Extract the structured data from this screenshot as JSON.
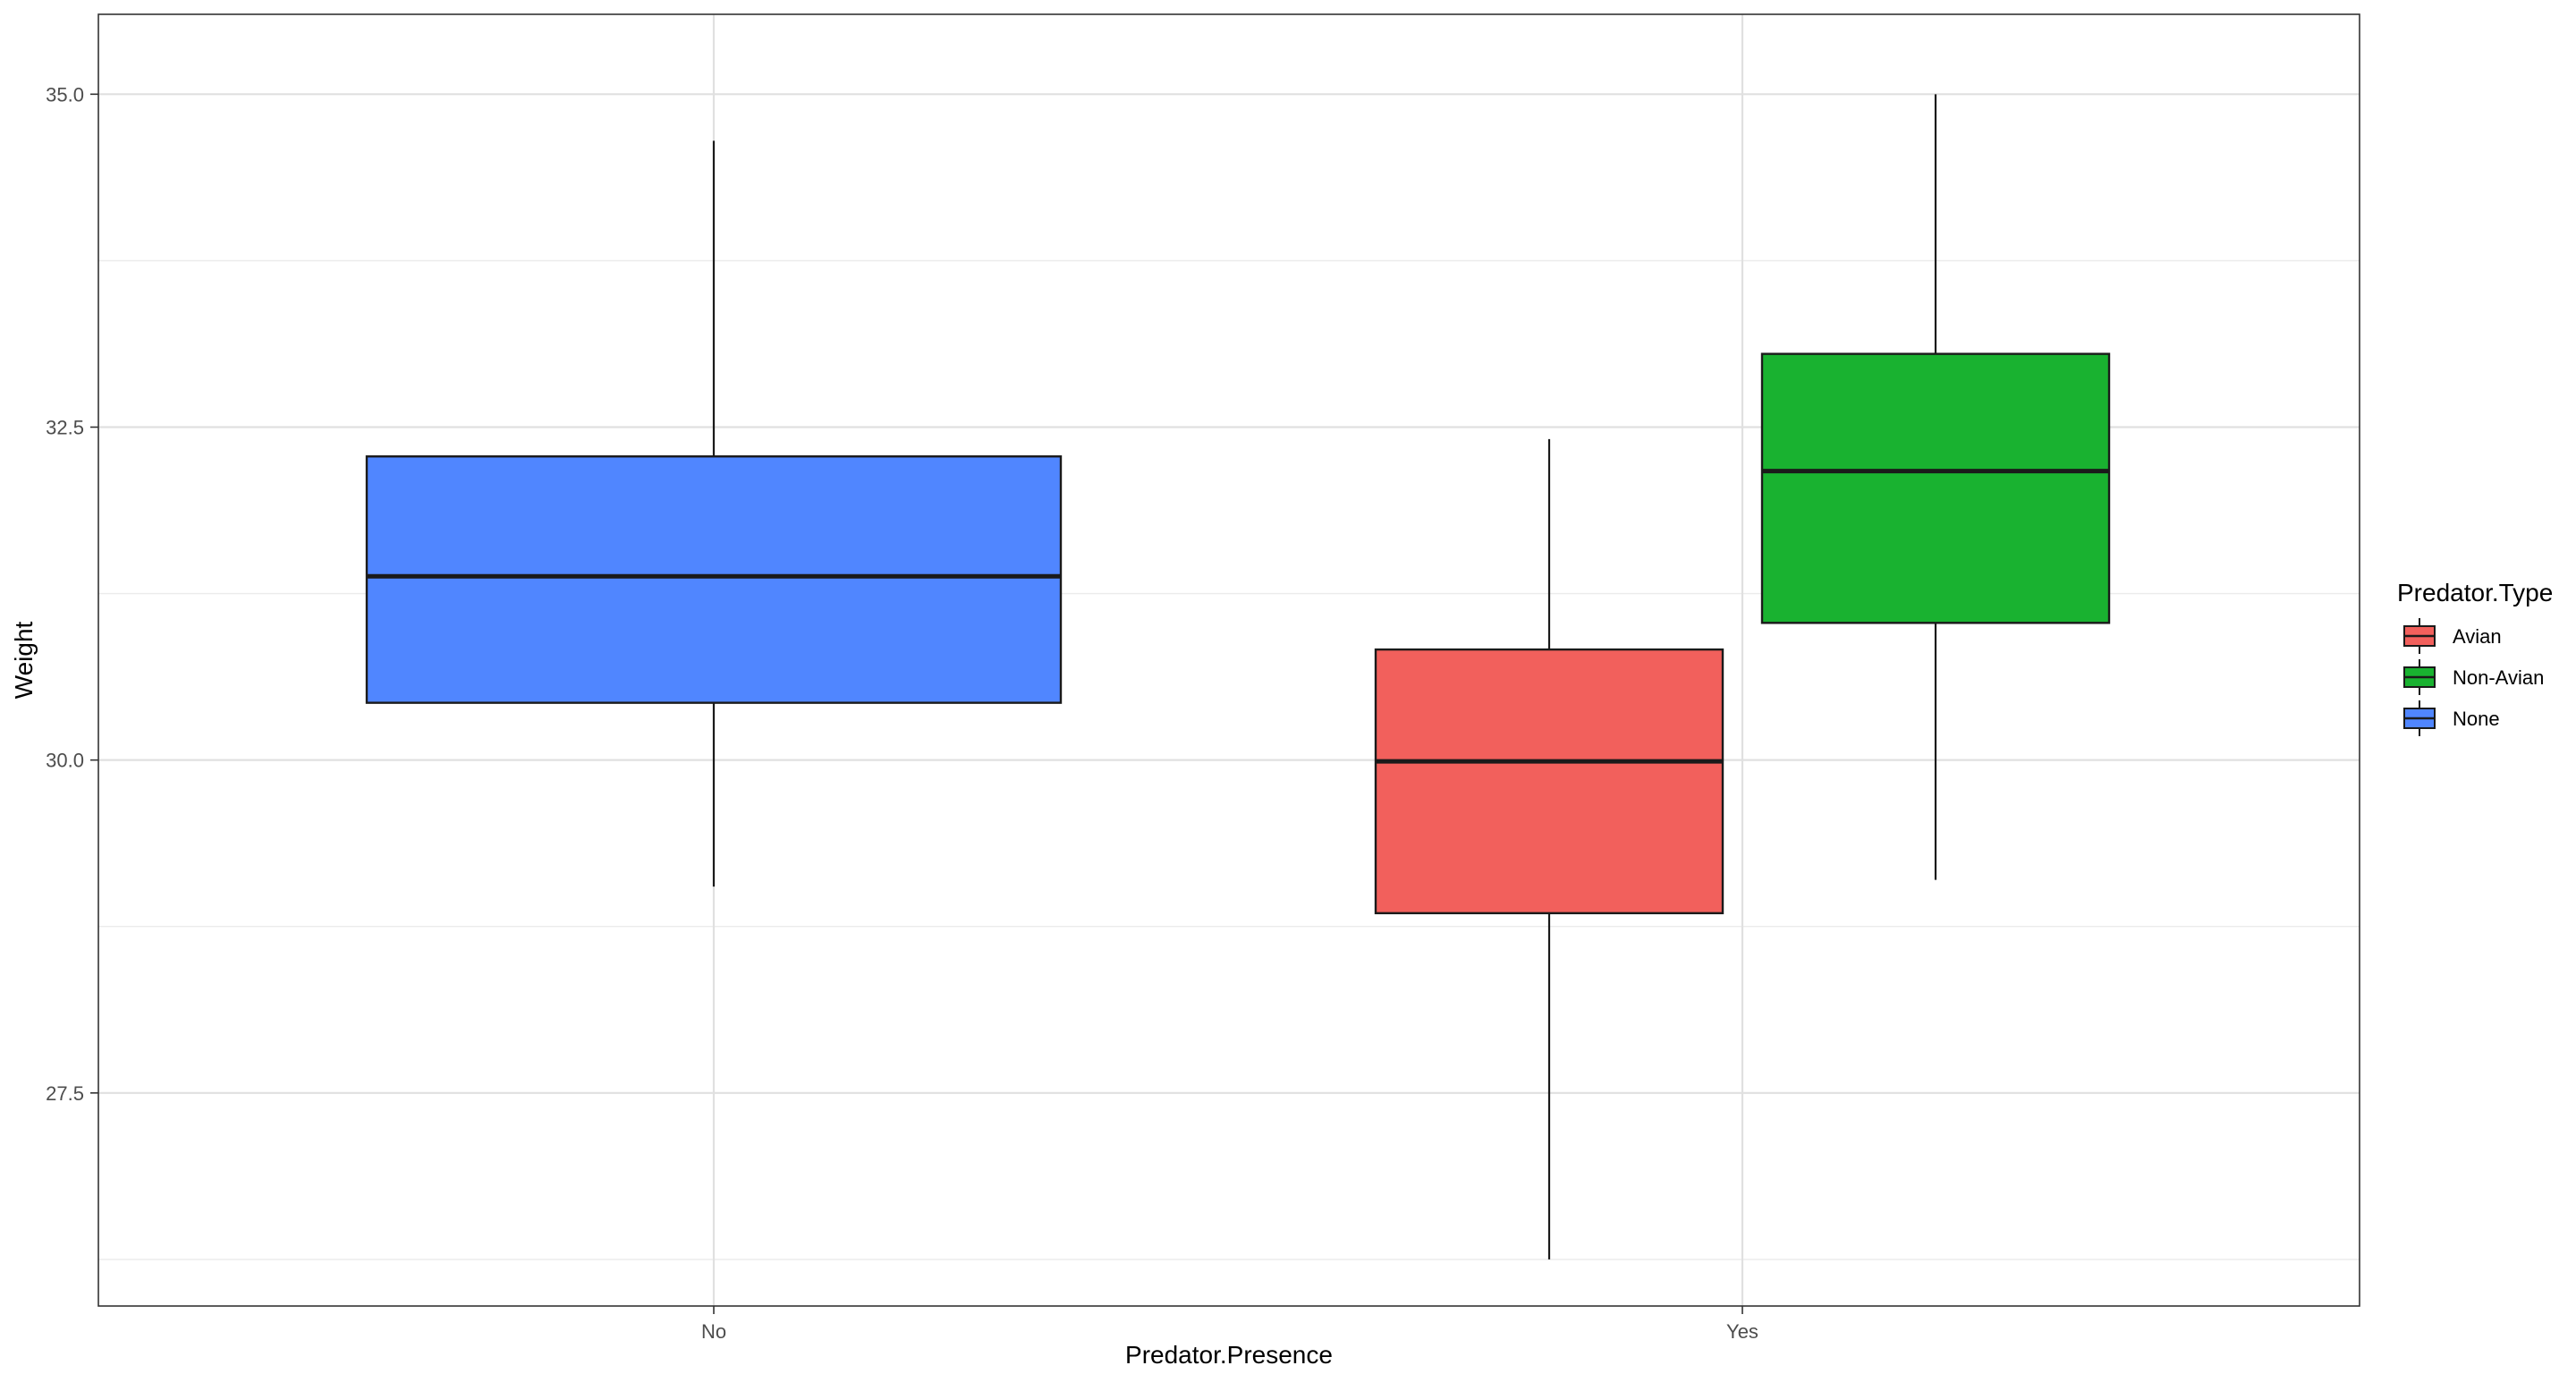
{
  "chart_data": {
    "type": "boxplot",
    "title": "",
    "xlabel": "Predator.Presence",
    "ylabel": "Weight",
    "categories": [
      "No",
      "Yes"
    ],
    "ylim": [
      25.9,
      35.6
    ],
    "yticks": [
      27.5,
      30.0,
      32.5,
      35.0
    ],
    "ytick_labels": [
      "27.5",
      "30.0",
      "32.5",
      "35.0"
    ],
    "grid": true,
    "legend": {
      "title": "Predator.Type",
      "placement": "right",
      "items": [
        {
          "label": "Avian",
          "color": "#F2605C"
        },
        {
          "label": "Non-Avian",
          "color": "#19B230"
        },
        {
          "label": "None",
          "color": "#5086FF"
        }
      ]
    },
    "series": [
      {
        "name": "None",
        "category": "No",
        "color": "#5086FF",
        "whisker_low": 29.05,
        "q1": 30.43,
        "median": 31.38,
        "q3": 32.28,
        "whisker_high": 34.65
      },
      {
        "name": "Avian",
        "category": "Yes",
        "color": "#F2605C",
        "whisker_low": 26.25,
        "q1": 28.85,
        "median": 29.99,
        "q3": 30.83,
        "whisker_high": 32.41
      },
      {
        "name": "Non-Avian",
        "category": "Yes",
        "color": "#19B230",
        "whisker_low": 29.1,
        "q1": 31.03,
        "median": 32.17,
        "q3": 33.05,
        "whisker_high": 35.0
      }
    ]
  }
}
